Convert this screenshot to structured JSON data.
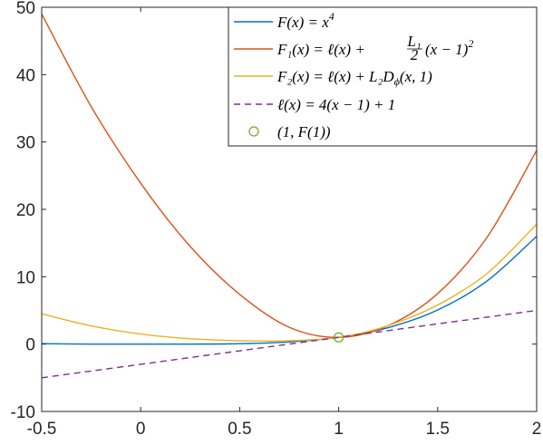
{
  "chart_data": {
    "type": "line",
    "title": "",
    "xlabel": "",
    "ylabel": "",
    "xlim": [
      -0.5,
      2
    ],
    "ylim": [
      -10,
      50
    ],
    "xticks": [
      -0.5,
      0,
      0.5,
      1,
      1.5,
      2
    ],
    "yticks": [
      -10,
      0,
      10,
      20,
      30,
      40,
      50
    ],
    "xtick_labels": [
      "-0.5",
      "0",
      "0.5",
      "1",
      "1.5",
      "2"
    ],
    "ytick_labels": [
      "-10",
      "0",
      "10",
      "20",
      "30",
      "40",
      "50"
    ],
    "grid": false,
    "legend_position": "top-right",
    "x": [
      -0.5,
      -0.25,
      0,
      0.25,
      0.5,
      0.75,
      1,
      1.25,
      1.5,
      1.75,
      2
    ],
    "series": [
      {
        "name": "F(x) = x^4",
        "color": "#0072BD",
        "style": "solid",
        "values": [
          0.06,
          0.0,
          0.0,
          0.0,
          0.06,
          0.32,
          1.0,
          2.44,
          5.06,
          9.38,
          16.0
        ]
      },
      {
        "name": "F1(x) = ℓ(x) + (L1/2)(x − 1)^2",
        "color": "#D95319",
        "style": "solid",
        "values": [
          49.0,
          35.25,
          23.88,
          14.5,
          7.38,
          2.5,
          1.0,
          2.75,
          7.5,
          15.88,
          28.75
        ]
      },
      {
        "name": "F2(x) = ℓ(x) + L2 Dφ(x,1)",
        "color": "#EDB120",
        "style": "solid",
        "values": [
          4.5,
          2.7,
          1.5,
          0.8,
          0.5,
          0.5,
          1.0,
          2.75,
          5.8,
          10.5,
          17.8
        ]
      },
      {
        "name": "ℓ(x) = 4(x − 1) + 1",
        "color": "#7E2F8E",
        "style": "dashed",
        "values": [
          -5,
          -4,
          -3,
          -2,
          -1,
          0,
          1,
          2,
          3,
          4,
          5
        ]
      }
    ],
    "points": [
      {
        "name": "(1, F(1))",
        "color": "#77AC30",
        "marker": "circle",
        "x": 1,
        "y": 1
      }
    ]
  },
  "legend": {
    "entries": [
      {
        "main": "F(x) = x",
        "sup": "4"
      },
      {
        "main": "F₁(x) = ℓ(x) + ",
        "frac_num": "L₁",
        "frac_den": "2",
        "tail": "(x − 1)",
        "sup": "2"
      },
      {
        "main": "F₂(x) = ℓ(x) + L₂D",
        "sub": "ϕ",
        "tail": "(x, 1)"
      },
      {
        "main": "ℓ(x) = 4(x − 1) + 1"
      },
      {
        "main": "(1, F(1))"
      }
    ]
  }
}
